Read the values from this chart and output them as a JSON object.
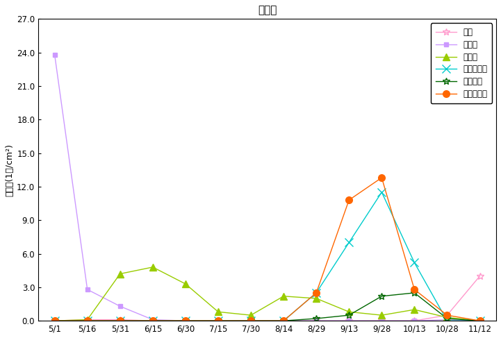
{
  "title": "千代田",
  "ylabel": "花粉数(1個/cm²)",
  "xlabels": [
    "5/1",
    "5/16",
    "5/31",
    "6/15",
    "6/30",
    "7/15",
    "7/30",
    "8/14",
    "8/29",
    "9/13",
    "9/28",
    "10/13",
    "10/28",
    "11/12"
  ],
  "ylim": [
    0,
    27
  ],
  "yticks": [
    0.0,
    3.0,
    6.0,
    9.0,
    12.0,
    15.0,
    18.0,
    21.0,
    24.0,
    27.0
  ],
  "series_order": [
    "スギ",
    "ヒノキ",
    "イネ科",
    "ブタクサ属",
    "ヨモギ属",
    "カナムグラ"
  ],
  "values": {
    "スギ": [
      0.0,
      0.1,
      0.1,
      0.0,
      0.0,
      0.0,
      0.0,
      0.0,
      0.0,
      0.0,
      0.0,
      0.0,
      0.5,
      4.0
    ],
    "ヒノキ": [
      23.8,
      2.8,
      1.3,
      0.1,
      0.0,
      0.0,
      0.0,
      0.0,
      0.0,
      0.0,
      0.0,
      0.0,
      0.1,
      0.0
    ],
    "イネ科": [
      0.0,
      0.1,
      4.2,
      4.8,
      3.3,
      0.8,
      0.5,
      2.2,
      2.0,
      0.8,
      0.5,
      1.0,
      0.3,
      0.0
    ],
    "ブタクサ属": [
      0.0,
      0.0,
      0.0,
      0.0,
      0.0,
      0.0,
      0.0,
      0.0,
      2.5,
      7.0,
      11.5,
      5.2,
      0.0,
      0.0
    ],
    "ヨモギ属": [
      0.0,
      0.0,
      0.0,
      0.0,
      0.0,
      0.0,
      0.0,
      0.0,
      0.2,
      0.5,
      2.2,
      2.5,
      0.2,
      0.0
    ],
    "カナムグラ": [
      0.0,
      0.0,
      0.0,
      0.0,
      0.0,
      0.0,
      0.0,
      0.0,
      2.5,
      10.8,
      12.8,
      2.8,
      0.5,
      0.0
    ]
  },
  "colors": {
    "スギ": "#ff99cc",
    "ヒノキ": "#cc99ff",
    "イネ科": "#99cc00",
    "ブタクサ属": "#00cccc",
    "ヨモギ属": "#006600",
    "カナムグラ": "#ff6600"
  },
  "markers": {
    "スギ": "*",
    "ヒノキ": "s",
    "イネ科": "^",
    "ブタクサ属": "x",
    "ヨモギ属": "*",
    "カナムグラ": "o"
  },
  "background": "#ffffff"
}
